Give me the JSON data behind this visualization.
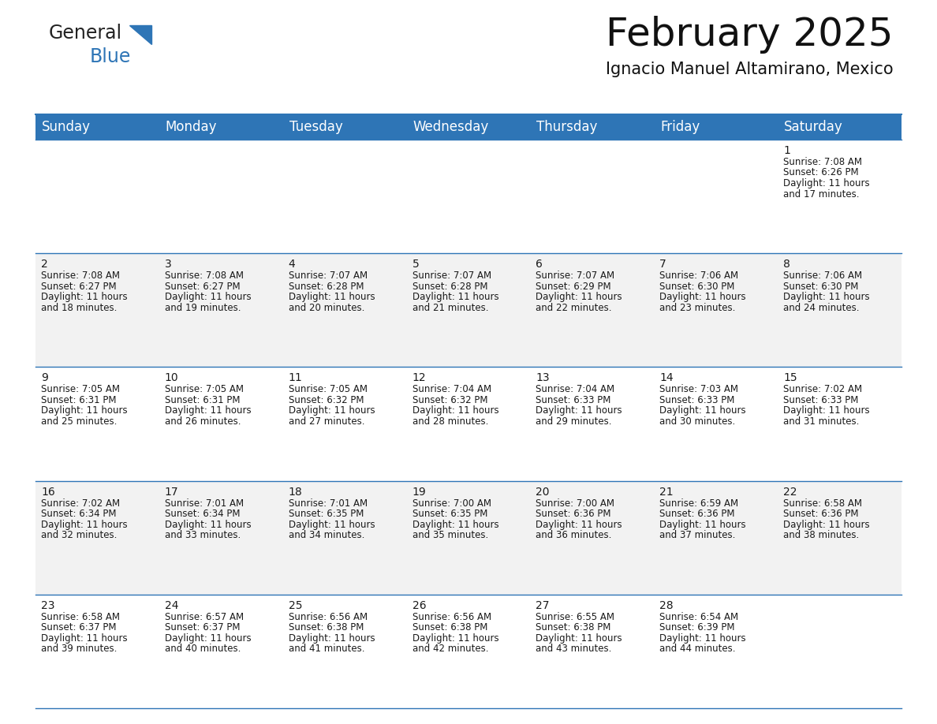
{
  "title": "February 2025",
  "subtitle": "Ignacio Manuel Altamirano, Mexico",
  "header_color": "#2E75B6",
  "header_text_color": "#FFFFFF",
  "cell_bg_white": "#FFFFFF",
  "cell_bg_gray": "#F2F2F2",
  "border_color": "#2E75B6",
  "text_color": "#1a1a1a",
  "day_names": [
    "Sunday",
    "Monday",
    "Tuesday",
    "Wednesday",
    "Thursday",
    "Friday",
    "Saturday"
  ],
  "title_fontsize": 36,
  "subtitle_fontsize": 15,
  "day_number_fontsize": 10,
  "cell_text_fontsize": 8.5,
  "header_fontsize": 12,
  "calendar_data": [
    [
      {
        "day": null,
        "text": ""
      },
      {
        "day": null,
        "text": ""
      },
      {
        "day": null,
        "text": ""
      },
      {
        "day": null,
        "text": ""
      },
      {
        "day": null,
        "text": ""
      },
      {
        "day": null,
        "text": ""
      },
      {
        "day": 1,
        "text": "Sunrise: 7:08 AM\nSunset: 6:26 PM\nDaylight: 11 hours\nand 17 minutes."
      }
    ],
    [
      {
        "day": 2,
        "text": "Sunrise: 7:08 AM\nSunset: 6:27 PM\nDaylight: 11 hours\nand 18 minutes."
      },
      {
        "day": 3,
        "text": "Sunrise: 7:08 AM\nSunset: 6:27 PM\nDaylight: 11 hours\nand 19 minutes."
      },
      {
        "day": 4,
        "text": "Sunrise: 7:07 AM\nSunset: 6:28 PM\nDaylight: 11 hours\nand 20 minutes."
      },
      {
        "day": 5,
        "text": "Sunrise: 7:07 AM\nSunset: 6:28 PM\nDaylight: 11 hours\nand 21 minutes."
      },
      {
        "day": 6,
        "text": "Sunrise: 7:07 AM\nSunset: 6:29 PM\nDaylight: 11 hours\nand 22 minutes."
      },
      {
        "day": 7,
        "text": "Sunrise: 7:06 AM\nSunset: 6:30 PM\nDaylight: 11 hours\nand 23 minutes."
      },
      {
        "day": 8,
        "text": "Sunrise: 7:06 AM\nSunset: 6:30 PM\nDaylight: 11 hours\nand 24 minutes."
      }
    ],
    [
      {
        "day": 9,
        "text": "Sunrise: 7:05 AM\nSunset: 6:31 PM\nDaylight: 11 hours\nand 25 minutes."
      },
      {
        "day": 10,
        "text": "Sunrise: 7:05 AM\nSunset: 6:31 PM\nDaylight: 11 hours\nand 26 minutes."
      },
      {
        "day": 11,
        "text": "Sunrise: 7:05 AM\nSunset: 6:32 PM\nDaylight: 11 hours\nand 27 minutes."
      },
      {
        "day": 12,
        "text": "Sunrise: 7:04 AM\nSunset: 6:32 PM\nDaylight: 11 hours\nand 28 minutes."
      },
      {
        "day": 13,
        "text": "Sunrise: 7:04 AM\nSunset: 6:33 PM\nDaylight: 11 hours\nand 29 minutes."
      },
      {
        "day": 14,
        "text": "Sunrise: 7:03 AM\nSunset: 6:33 PM\nDaylight: 11 hours\nand 30 minutes."
      },
      {
        "day": 15,
        "text": "Sunrise: 7:02 AM\nSunset: 6:33 PM\nDaylight: 11 hours\nand 31 minutes."
      }
    ],
    [
      {
        "day": 16,
        "text": "Sunrise: 7:02 AM\nSunset: 6:34 PM\nDaylight: 11 hours\nand 32 minutes."
      },
      {
        "day": 17,
        "text": "Sunrise: 7:01 AM\nSunset: 6:34 PM\nDaylight: 11 hours\nand 33 minutes."
      },
      {
        "day": 18,
        "text": "Sunrise: 7:01 AM\nSunset: 6:35 PM\nDaylight: 11 hours\nand 34 minutes."
      },
      {
        "day": 19,
        "text": "Sunrise: 7:00 AM\nSunset: 6:35 PM\nDaylight: 11 hours\nand 35 minutes."
      },
      {
        "day": 20,
        "text": "Sunrise: 7:00 AM\nSunset: 6:36 PM\nDaylight: 11 hours\nand 36 minutes."
      },
      {
        "day": 21,
        "text": "Sunrise: 6:59 AM\nSunset: 6:36 PM\nDaylight: 11 hours\nand 37 minutes."
      },
      {
        "day": 22,
        "text": "Sunrise: 6:58 AM\nSunset: 6:36 PM\nDaylight: 11 hours\nand 38 minutes."
      }
    ],
    [
      {
        "day": 23,
        "text": "Sunrise: 6:58 AM\nSunset: 6:37 PM\nDaylight: 11 hours\nand 39 minutes."
      },
      {
        "day": 24,
        "text": "Sunrise: 6:57 AM\nSunset: 6:37 PM\nDaylight: 11 hours\nand 40 minutes."
      },
      {
        "day": 25,
        "text": "Sunrise: 6:56 AM\nSunset: 6:38 PM\nDaylight: 11 hours\nand 41 minutes."
      },
      {
        "day": 26,
        "text": "Sunrise: 6:56 AM\nSunset: 6:38 PM\nDaylight: 11 hours\nand 42 minutes."
      },
      {
        "day": 27,
        "text": "Sunrise: 6:55 AM\nSunset: 6:38 PM\nDaylight: 11 hours\nand 43 minutes."
      },
      {
        "day": 28,
        "text": "Sunrise: 6:54 AM\nSunset: 6:39 PM\nDaylight: 11 hours\nand 44 minutes."
      },
      {
        "day": null,
        "text": ""
      }
    ]
  ],
  "logo_general_color": "#222222",
  "logo_blue_color": "#2E75B6",
  "logo_triangle_color": "#2E75B6"
}
